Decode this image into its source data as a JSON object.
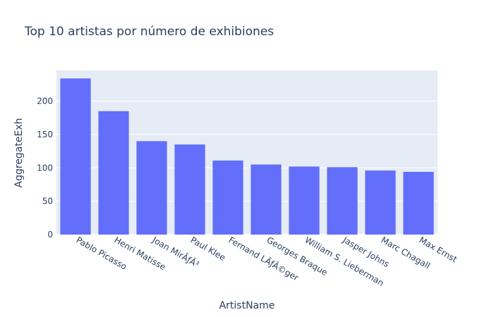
{
  "chart_data": {
    "type": "bar",
    "title": "Top 10 artistas por número de exhibiones",
    "xlabel": "ArtistName",
    "ylabel": "AggregateExh",
    "categories": [
      "Pablo Picasso",
      "Henri Matisse",
      "Joan MirÃƒÂ³",
      "Paul Klee",
      "Fernand LÃƒÂ©ger",
      "Georges Braque",
      "William S. Lieberman",
      "Jasper Johns",
      "Marc Chagall",
      "Max Ernst"
    ],
    "values": [
      234,
      185,
      140,
      135,
      111,
      105,
      102,
      101,
      96,
      94
    ],
    "ylim": [
      0,
      246
    ],
    "yticks": [
      0,
      50,
      100,
      150,
      200
    ],
    "grid": true,
    "bar_color": "#636efa",
    "plot_bg": "#e5ecf6",
    "text_color": "#2a3f5f"
  }
}
